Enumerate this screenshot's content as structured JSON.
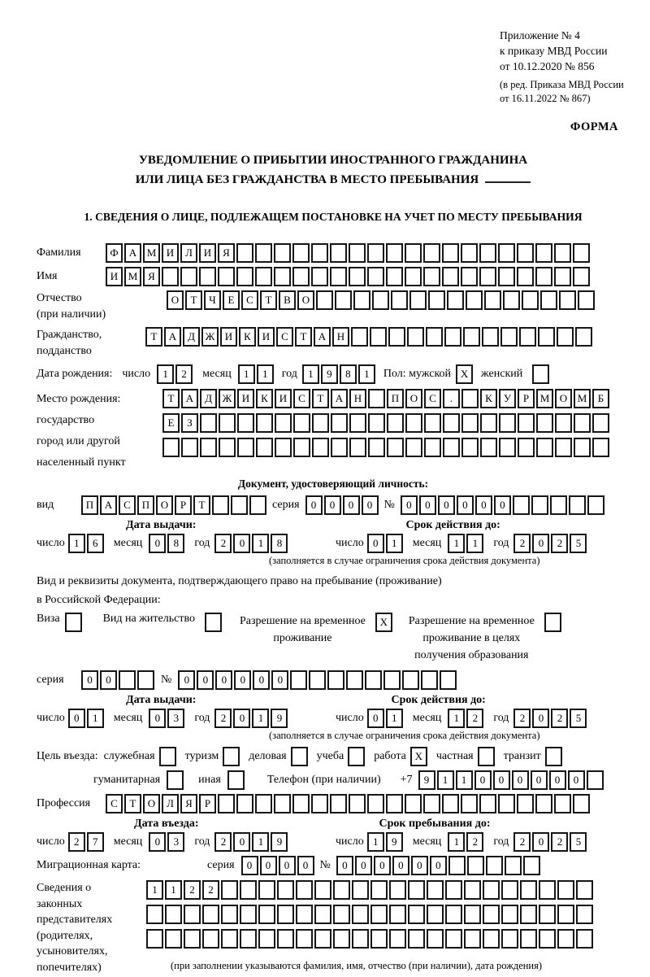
{
  "date_labels": {
    "day": "число",
    "month": "месяц",
    "year": "год"
  },
  "header": {
    "appendix1": "Приложение № 4",
    "appendix2": "к приказу МВД России",
    "appendix3": "от 10.12.2020 № 856",
    "revision1": "(в ред. Приказа МВД России",
    "revision2": "от 16.11.2022 № 867)",
    "forma": "ФОРМА"
  },
  "title": {
    "line1": "УВЕДОМЛЕНИЕ О ПРИБЫТИИ ИНОСТРАННОГО ГРАЖДАНИНА",
    "line2": "ИЛИ ЛИЦА БЕЗ ГРАЖДАНСТВА В МЕСТО ПРЕБЫВАНИЯ"
  },
  "section_heading": "1. СВЕДЕНИЯ О ЛИЦЕ, ПОДЛЕЖАЩЕМ ПОСТАНОВКЕ НА УЧЕТ ПО МЕСТУ ПРЕБЫВАНИЯ",
  "surname": {
    "label": "Фамилия",
    "cells": {
      "value": "ФАМИЛИЯ",
      "count": 26
    }
  },
  "name": {
    "label": "Имя",
    "cells": {
      "value": "ИМЯ",
      "count": 26
    }
  },
  "patronymic": {
    "label1": "Отчество",
    "label2": "(при наличии)",
    "cells": {
      "value": "ОТЧЕСТВО",
      "count": 23
    }
  },
  "citizenship": {
    "label1": "Гражданство,",
    "label2": "подданство",
    "cells": {
      "value": "ТАДЖИКИСТАН",
      "count": 24
    }
  },
  "birth_date": {
    "label": "Дата рождения:",
    "day": "12",
    "month": "11",
    "year": "1981",
    "sex_label": "Пол: мужской",
    "male": "X",
    "female_label": "женский",
    "female": ""
  },
  "birth_place": {
    "label1": "Место рождения:",
    "label2": "государство",
    "label3": "город или другой",
    "label4": "населенный пункт",
    "row1": {
      "value": "ТАДЖИКИСТАН ПОС. КУРМОМБ",
      "count": 24
    },
    "row2": {
      "value": "ЕЗ",
      "count": 24
    },
    "row3": {
      "value": "",
      "count": 24
    }
  },
  "identity_doc": {
    "heading": "Документ, удостоверяющий личность:",
    "type_label": "вид",
    "type": {
      "value": "ПАСПОРТ",
      "count": 10
    },
    "series_label": "серия",
    "series": {
      "value": "0000",
      "count": 4
    },
    "number_label": "№",
    "number": {
      "value": "000000",
      "count": 11
    },
    "issue_heading": "Дата выдачи:",
    "expiry_heading": "Срок действия до:",
    "issue": {
      "day": "16",
      "month": "08",
      "year": "2018"
    },
    "expiry": {
      "day": "01",
      "month": "11",
      "year": "2025"
    },
    "note": "(заполняется в случае ограничения срока действия документа)"
  },
  "residence_doc": {
    "intro1": "Вид и реквизиты документа, подтверждающего право на пребывание (проживание)",
    "intro2": "в Российской Федерации:",
    "visa_label": "Виза",
    "visa": "",
    "permit_label": "Вид на жительство",
    "permit": "",
    "temp1": "Разрешение на временное",
    "temp2": "проживание",
    "temp": "X",
    "edu1": "Разрешение на временное",
    "edu2": "проживание в целях",
    "edu3": "получения образования",
    "edu": "",
    "series_label": "серия",
    "series": {
      "value": "00",
      "count": 4
    },
    "number_label": "№",
    "number": {
      "value": "000000",
      "count": 15
    },
    "issue_heading": "Дата выдачи:",
    "expiry_heading": "Срок действия до:",
    "issue": {
      "day": "01",
      "month": "03",
      "year": "2019"
    },
    "expiry": {
      "day": "01",
      "month": "12",
      "year": "2025"
    },
    "note": "(заполняется в случае ограничения срока действия документа)"
  },
  "purpose": {
    "label": "Цель въезда:",
    "options": [
      {
        "label": "служебная",
        "checked": ""
      },
      {
        "label": "туризм",
        "checked": ""
      },
      {
        "label": "деловая",
        "checked": ""
      },
      {
        "label": "учеба",
        "checked": ""
      },
      {
        "label": "работа",
        "checked": "X"
      },
      {
        "label": "частная",
        "checked": ""
      },
      {
        "label": "транзит",
        "checked": ""
      }
    ],
    "hum_label": "гуманитарная",
    "hum": "",
    "other_label": "иная",
    "other": "",
    "phone_label": "Телефон (при наличии)",
    "phone_prefix": "+7",
    "phone": {
      "value": "911000000",
      "count": 10
    }
  },
  "profession": {
    "label": "Профессия",
    "cells": {
      "value": "СТОЛЯР",
      "count": 26
    }
  },
  "entry": {
    "date_heading": "Дата въезда:",
    "stay_heading": "Срок пребывания до:",
    "date": {
      "day": "27",
      "month": "03",
      "year": "2019"
    },
    "stay": {
      "day": "19",
      "month": "12",
      "year": "2025"
    }
  },
  "migration_card": {
    "label": "Миграционная карта:",
    "series_label": "серия",
    "series": {
      "value": "0000",
      "count": 4
    },
    "number_label": "№",
    "number": {
      "value": "000000",
      "count": 11
    }
  },
  "representatives": {
    "l1": "Сведения о",
    "l2": "законных",
    "l3": "представителях",
    "l4": "(родителях,",
    "l5": "усыновителях,",
    "l6": "попечителях)",
    "row1": {
      "value": "1122",
      "count": 24
    },
    "row2": {
      "value": "",
      "count": 24
    },
    "row3": {
      "value": "",
      "count": 24
    },
    "note": "(при заполнении указываются фамилия, имя, отчество (при наличии), дата рождения)"
  }
}
